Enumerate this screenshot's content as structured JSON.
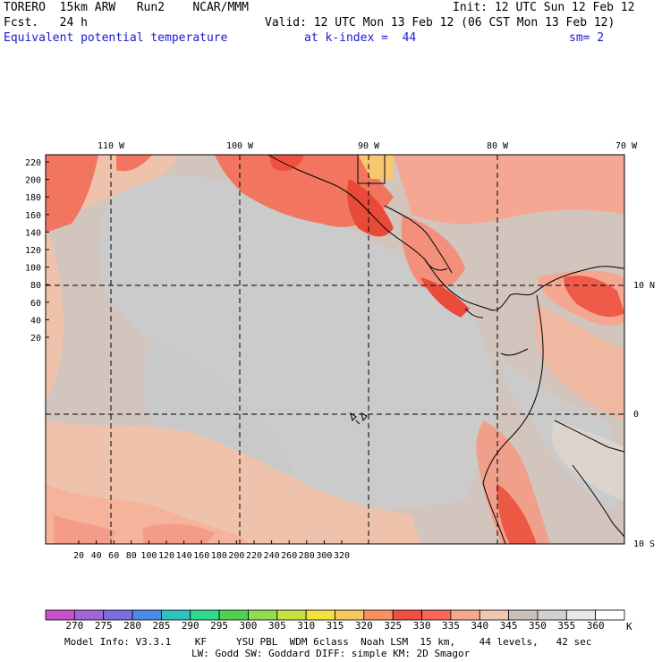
{
  "header": {
    "line1_left": "TORERO  15km ARW   Run2    NCAR/MMM",
    "line1_right": "Init: 12 UTC Sun 12 Feb 12",
    "line2_left": "Fcst.   24 h",
    "line2_right": "Valid: 12 UTC Mon 13 Feb 12 (06 CST Mon 13 Feb 12)",
    "line3_field": "Equivalent potential temperature",
    "line3_level": "at k-index =  44",
    "line3_smooth": "sm= 2"
  },
  "map": {
    "lon_labels": [
      "110 W",
      "100 W",
      "90 W",
      "80 W",
      "70 W"
    ],
    "lat_labels": [
      "10 N",
      "0",
      "10 S"
    ],
    "y_ticks": [
      "220",
      "200",
      "180",
      "160",
      "140",
      "120",
      "100",
      "80",
      "60",
      "40",
      "20"
    ],
    "x_ticks": [
      "20",
      "40",
      "60",
      "80",
      "100",
      "120",
      "140",
      "160",
      "180",
      "200",
      "220",
      "240",
      "260",
      "280",
      "300",
      "320"
    ]
  },
  "colorbar": {
    "unit": "K",
    "labels": [
      "270",
      "275",
      "280",
      "285",
      "290",
      "295",
      "300",
      "305",
      "310",
      "315",
      "320",
      "325",
      "330",
      "335",
      "340",
      "345",
      "350",
      "355",
      "360"
    ],
    "colors": [
      "#c850c8",
      "#a066d8",
      "#7a6ee0",
      "#4a8ae8",
      "#30c0c0",
      "#30d890",
      "#50d050",
      "#90dd50",
      "#c8e040",
      "#f0e040",
      "#f8c860",
      "#f89060",
      "#f05040",
      "#f86858",
      "#f8a890",
      "#f0c8b0",
      "#c8c0b8",
      "#d0d0d0",
      "#e8e8e8",
      "#ffffff"
    ]
  },
  "footer": {
    "line1": "Model Info: V3.3.1    KF     YSU PBL  WDM 6class  Noah LSM  15 km,    44 levels,   42 sec",
    "line2": "LW: Godd SW: Goddard DIFF: simple KM: 2D Smagor"
  }
}
